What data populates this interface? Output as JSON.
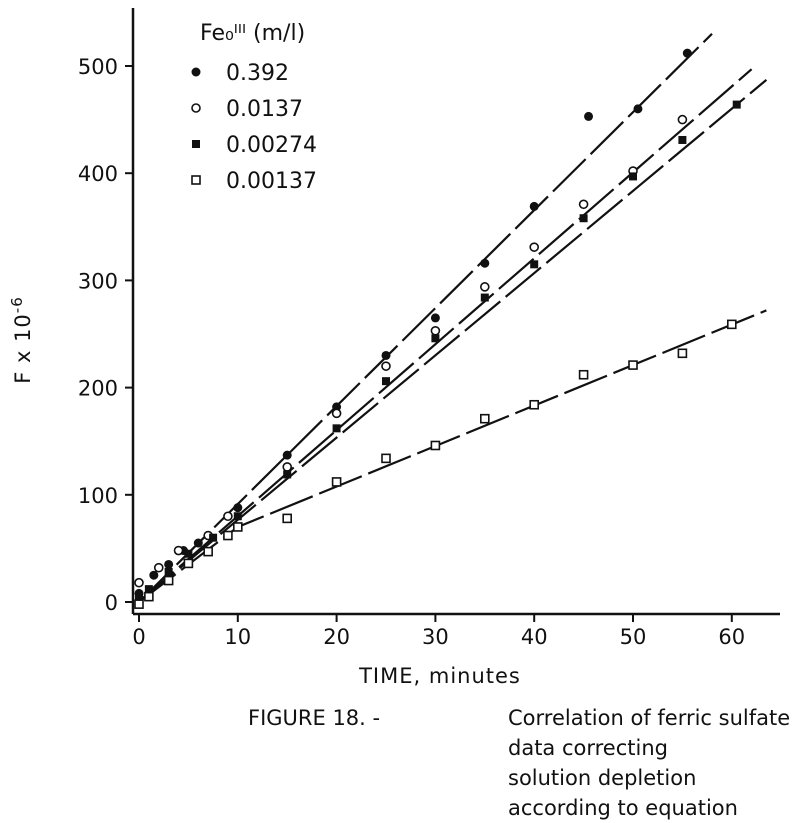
{
  "chart_data": {
    "type": "scatter",
    "xlabel": "TIME, minutes",
    "ylabel": "F x 10^-6",
    "ylabel_main": "F x 10",
    "ylabel_exp": "-6",
    "xlim": [
      0,
      65
    ],
    "ylim": [
      0,
      550
    ],
    "xticks": [
      "0",
      "10",
      "20",
      "30",
      "40",
      "50",
      "60"
    ],
    "yticks": [
      "0",
      "100",
      "200",
      "300",
      "400",
      "500"
    ],
    "grid": false,
    "legend_title": "Fe₀ᴵᴵᴵ (m/l)",
    "legend_placement": "top-left",
    "series": [
      {
        "name": "0.392",
        "marker": "filled-circle",
        "points": [
          [
            0,
            8
          ],
          [
            1.5,
            25
          ],
          [
            3,
            35
          ],
          [
            4.5,
            48
          ],
          [
            6,
            55
          ],
          [
            10,
            88
          ],
          [
            15,
            137
          ],
          [
            20,
            182
          ],
          [
            25,
            230
          ],
          [
            30,
            265
          ],
          [
            35,
            316
          ],
          [
            40,
            369
          ],
          [
            45.5,
            453
          ],
          [
            50.5,
            460
          ],
          [
            55.5,
            512
          ]
        ],
        "fit_line": [
          [
            0,
            0
          ],
          [
            58,
            530
          ]
        ]
      },
      {
        "name": "0.0137",
        "marker": "open-circle",
        "points": [
          [
            0,
            18
          ],
          [
            2,
            32
          ],
          [
            4,
            48
          ],
          [
            7,
            62
          ],
          [
            9,
            80
          ],
          [
            15,
            126
          ],
          [
            20,
            176
          ],
          [
            25,
            220
          ],
          [
            30,
            253
          ],
          [
            35,
            294
          ],
          [
            40,
            331
          ],
          [
            45,
            371
          ],
          [
            50,
            402
          ],
          [
            55,
            450
          ]
        ],
        "fit_line": [
          [
            0,
            0
          ],
          [
            62,
            497
          ]
        ]
      },
      {
        "name": "0.00274",
        "marker": "filled-square",
        "points": [
          [
            0,
            5
          ],
          [
            1,
            12
          ],
          [
            3,
            28
          ],
          [
            5,
            45
          ],
          [
            7.5,
            60
          ],
          [
            10,
            80
          ],
          [
            15,
            119
          ],
          [
            20,
            162
          ],
          [
            25,
            206
          ],
          [
            30,
            246
          ],
          [
            35,
            284
          ],
          [
            40,
            315
          ],
          [
            45,
            358
          ],
          [
            50,
            397
          ],
          [
            55,
            431
          ],
          [
            60.5,
            464
          ]
        ],
        "fit_line": [
          [
            0,
            0
          ],
          [
            63.5,
            487
          ]
        ]
      },
      {
        "name": "0.00137",
        "marker": "open-square",
        "points": [
          [
            0,
            -2
          ],
          [
            1,
            5
          ],
          [
            3,
            20
          ],
          [
            5,
            36
          ],
          [
            7,
            47
          ],
          [
            9,
            62
          ],
          [
            10,
            70
          ],
          [
            15,
            78
          ],
          [
            20,
            112
          ],
          [
            25,
            134
          ],
          [
            30,
            146
          ],
          [
            35,
            171
          ],
          [
            40,
            184
          ],
          [
            45,
            212
          ],
          [
            50,
            221
          ],
          [
            55,
            232
          ],
          [
            60,
            259
          ]
        ],
        "fit_line": [
          [
            0,
            0
          ],
          [
            10,
            70
          ],
          [
            63.5,
            272
          ]
        ]
      }
    ]
  },
  "caption": {
    "lead": "FIGURE 18. -",
    "line1": "Correlation of ferric sulfate data correcting",
    "line2": "solution depletion according to equation"
  }
}
